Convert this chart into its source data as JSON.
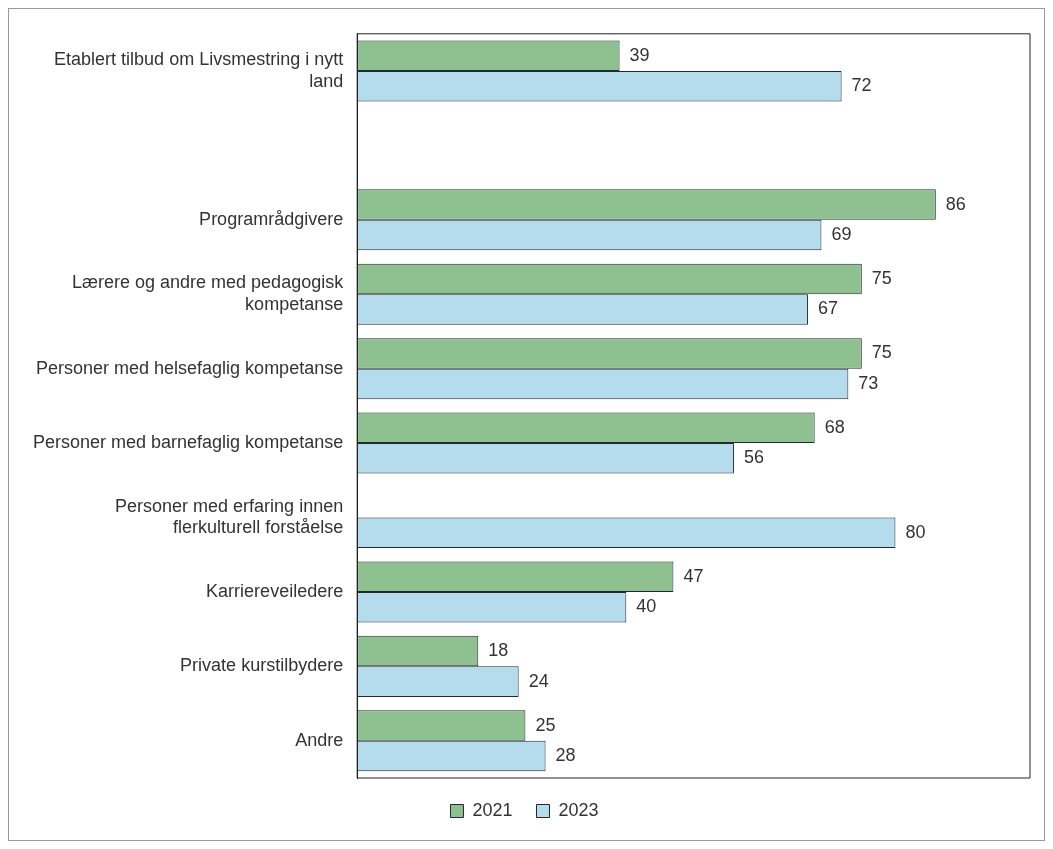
{
  "chart_data": {
    "type": "bar",
    "orientation": "horizontal",
    "categories": [
      "Etablert tilbud om Livsmestring i nytt land",
      null,
      "Programrådgivere",
      "Lærere og andre med pedagogisk kompetanse",
      "Personer med helsefaglig kompetanse",
      "Personer med barnefaglig kompetanse",
      "Personer med erfaring innen flerkulturell forståelse",
      "Karriereveiledere",
      "Private kurstilbydere",
      "Andre"
    ],
    "series": [
      {
        "name": "2021",
        "color": "#8fc08f",
        "values": [
          39,
          null,
          86,
          75,
          75,
          68,
          null,
          47,
          18,
          25
        ]
      },
      {
        "name": "2023",
        "color": "#b4dcec",
        "values": [
          72,
          null,
          69,
          67,
          73,
          56,
          80,
          40,
          24,
          28
        ]
      }
    ],
    "xlim": [
      0,
      100
    ],
    "tick_labels": "y",
    "grid": false,
    "legend": "bottom",
    "data_labels": true
  }
}
